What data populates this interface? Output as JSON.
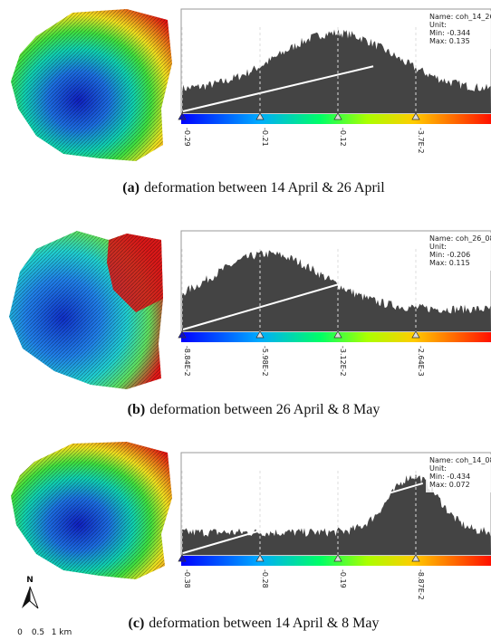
{
  "panels": [
    {
      "info": {
        "name": "Name: coh_14_26",
        "unit": "Unit:",
        "min": "Min: -0.344",
        "max": "Max: 0.135"
      },
      "ticks": [
        "-0.29",
        "-0.21",
        "-0.12",
        "-3.7E-2"
      ],
      "caption": {
        "label": "(a)",
        "text": "deformation between 14 April & 26 April"
      }
    },
    {
      "info": {
        "name": "Name: coh_26_08",
        "unit": "Unit:",
        "min": "Min: -0.206",
        "max": "Max: 0.115"
      },
      "ticks": [
        "-8.84E-2",
        "-5.98E-2",
        "-3.12E-2",
        "-2.64E-3"
      ],
      "caption": {
        "label": "(b)",
        "text": "deformation between 26 April & 8 May"
      }
    },
    {
      "info": {
        "name": "Name: coh_14_08",
        "unit": "Unit:",
        "min": "Min: -0.434",
        "max": "Max: 0.072"
      },
      "ticks": [
        "-0.38",
        "-0.28",
        "-0.19",
        "-8.87E-2"
      ],
      "caption": {
        "label": "(c)",
        "text": "deformation between 14 April & 8 May"
      }
    }
  ],
  "scale_bar": {
    "north": "N",
    "labels": [
      "0",
      "0.5",
      "1 km"
    ]
  }
}
